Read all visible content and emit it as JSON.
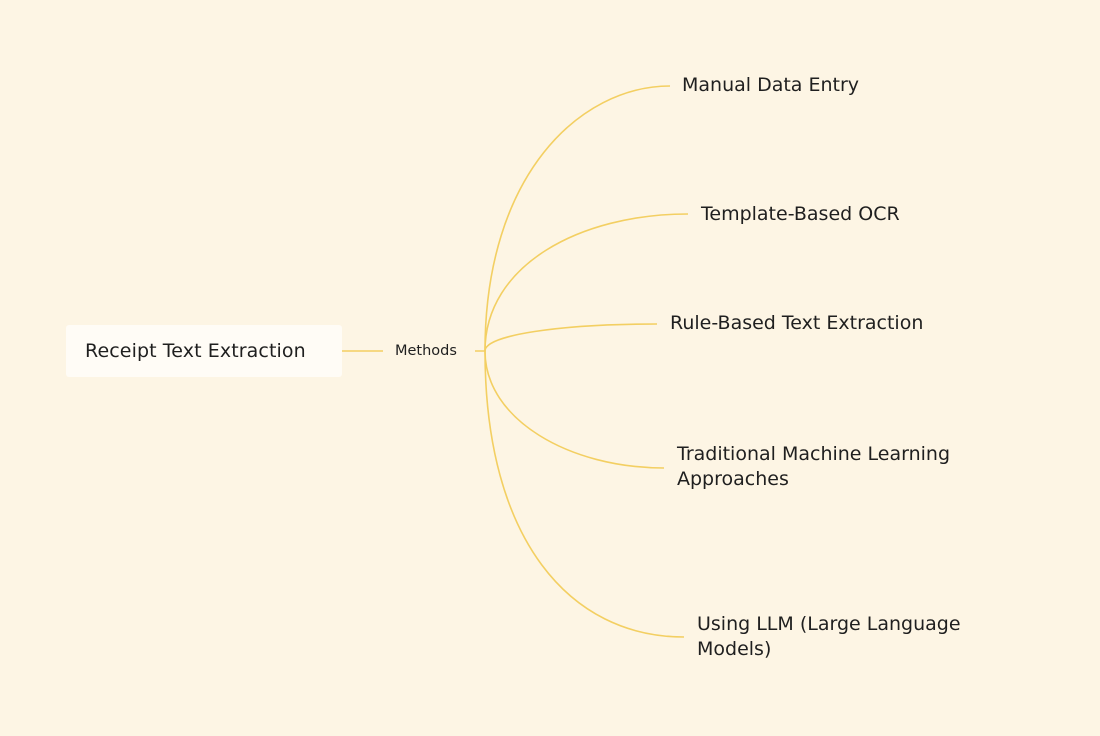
{
  "mindmap": {
    "root": {
      "label": "Receipt Text Extraction"
    },
    "branch": {
      "label": "Methods"
    },
    "leaves": [
      {
        "label": "Manual Data Entry"
      },
      {
        "label": "Template-Based OCR"
      },
      {
        "label": "Rule-Based Text Extraction"
      },
      {
        "label": "Traditional Machine Learning Approaches"
      },
      {
        "label": "Using LLM (Large Language Models)"
      }
    ]
  },
  "colors": {
    "background": "#fdf5e4",
    "connector": "#f3cf62",
    "root_fill": "#fffcf6",
    "text": "#1f1f1f"
  }
}
